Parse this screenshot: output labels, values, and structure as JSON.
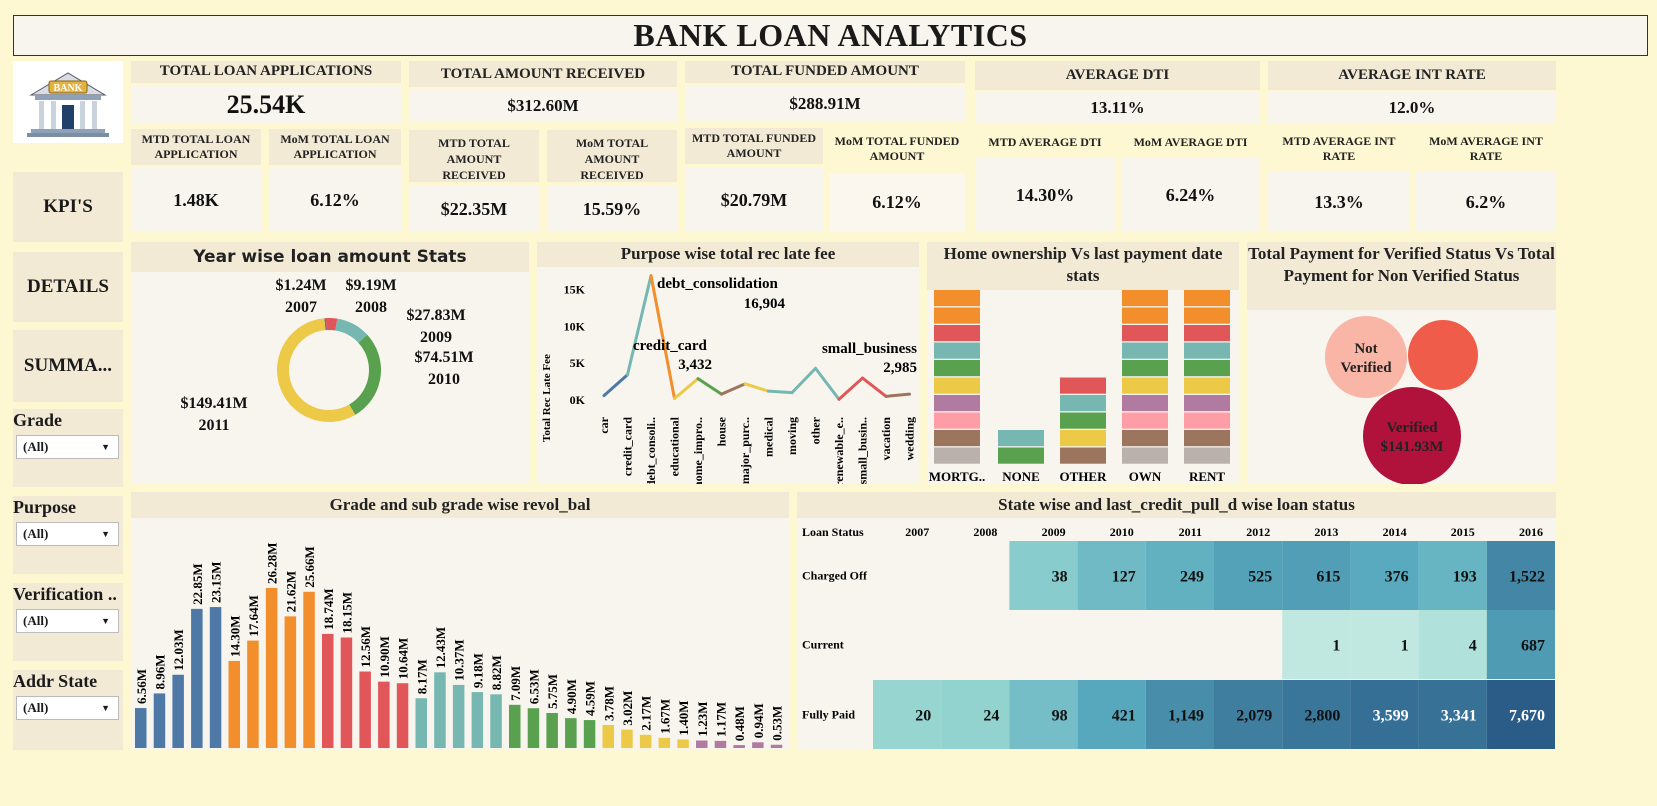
{
  "title": "BANK LOAN ANALYTICS",
  "kpis": {
    "total_loan_applications": {
      "label": "TOTAL LOAN APPLICATIONS",
      "value": "25.54K",
      "mtd_label": "MTD TOTAL LOAN APPLICATION",
      "mtd_value": "1.48K",
      "mom_label": "MoM TOTAL LOAN APPLICATION",
      "mom_value": "6.12%"
    },
    "total_amount_received": {
      "label": "TOTAL AMOUNT RECEIVED",
      "value": "$312.60M",
      "mtd_label": "MTD TOTAL AMOUNT RECEIVED",
      "mtd_value": "$22.35M",
      "mom_label": "MoM TOTAL AMOUNT RECEIVED",
      "mom_value": "15.59%"
    },
    "total_funded_amount": {
      "label": "TOTAL FUNDED AMOUNT",
      "value": "$288.91M",
      "mtd_label": "MTD TOTAL FUNDED AMOUNT",
      "mtd_value": "$20.79M",
      "mom_label": "MoM TOTAL FUNDED AMOUNT",
      "mom_value": "6.12%"
    },
    "average_dti": {
      "label": "AVERAGE DTI",
      "value": "13.11%",
      "mtd_label": "MTD AVERAGE DTI",
      "mtd_value": "14.30%",
      "mom_label": "MoM AVERAGE DTI",
      "mom_value": "6.24%"
    },
    "average_int_rate": {
      "label": "AVERAGE INT RATE",
      "value": "12.0%",
      "mtd_label": "MTD AVERAGE INT RATE",
      "mtd_value": "13.3%",
      "mom_label": "MoM AVERAGE INT RATE",
      "mom_value": "6.2%"
    }
  },
  "logo": {
    "text": "BANK",
    "icon": "bank-icon"
  },
  "nav": {
    "kpis": "KPI'S",
    "details": "DETAILS",
    "summary": "SUMMA..."
  },
  "filters": [
    {
      "label": "Grade",
      "value": "(All)"
    },
    {
      "label": "Purpose",
      "value": "(All)"
    },
    {
      "label": "Verification ..",
      "value": "(All)"
    },
    {
      "label": "Addr State",
      "value": "(All)"
    }
  ],
  "colors": {
    "blue": "#4e79a7",
    "orange": "#f28e2b",
    "red": "#e15759",
    "teal": "#76b7b2",
    "green": "#59a14f",
    "yellow": "#edc948",
    "purple": "#b07aa1",
    "pink": "#ff9da7",
    "brown": "#9c755f",
    "grey": "#bab0ac",
    "heat_dark": "#2b5b87"
  },
  "charts": {
    "year_wise": {
      "title": "Year wise loan amount Stats"
    },
    "purpose_fee": {
      "title": "Purpose wise total rec late fee"
    },
    "home_ownership": {
      "title": "Home ownership Vs last payment date stats"
    },
    "verified": {
      "title": "Total Payment for Verified Status Vs Total Payment for Non Verified Status"
    },
    "grade_revol": {
      "title": "Grade and sub grade wise revol_bal"
    },
    "state_status": {
      "title": "State wise and last_credit_pull_d wise loan status"
    }
  },
  "chart_data": [
    {
      "type": "pie",
      "title": "Year wise loan amount Stats",
      "categories": [
        "2007",
        "2008",
        "2009",
        "2010",
        "2011"
      ],
      "values": [
        1.24,
        9.19,
        27.83,
        74.51,
        149.41
      ],
      "labels": [
        "$1.24M",
        "$9.19M",
        "$27.83M",
        "$74.51M",
        "$149.41M"
      ],
      "colors": [
        "#4e79a7",
        "#e15759",
        "#76b7b2",
        "#59a14f",
        "#edc948"
      ]
    },
    {
      "type": "line",
      "title": "Purpose wise total rec late fee",
      "ylabel": "Total Rec Late Fee",
      "categories": [
        "car",
        "credit_card",
        "debt_consoli..",
        "educational",
        "home_impro..",
        "house",
        "major_purc..",
        "medical",
        "moving",
        "other",
        "renewable_e..",
        "small_busin..",
        "vacation",
        "wedding"
      ],
      "values": [
        600,
        3432,
        16904,
        200,
        2900,
        800,
        2200,
        1200,
        1000,
        4300,
        100,
        2985,
        500,
        800
      ],
      "ylim": [
        0,
        17000
      ],
      "yticks": [
        "0K",
        "5K",
        "10K",
        "15K"
      ],
      "annotations": [
        {
          "name": "debt_consolidation",
          "value": "16,904"
        },
        {
          "name": "credit_card",
          "value": "3,432"
        },
        {
          "name": "small_business",
          "value": "2,985"
        }
      ]
    },
    {
      "type": "bar",
      "title": "Home ownership Vs last payment date stats",
      "categories": [
        "MORTG..",
        "NONE",
        "OTHER",
        "OWN",
        "RENT"
      ],
      "segments_per_category": [
        10,
        2,
        5,
        10,
        10
      ],
      "segment_colors": [
        "#bab0ac",
        "#9c755f",
        "#ff9da7",
        "#b07aa1",
        "#edc948",
        "#59a14f",
        "#76b7b2",
        "#e15759",
        "#f28e2b"
      ]
    },
    {
      "type": "scatter",
      "title": "Total Payment for Verified Status Vs Total Payment for Non Verified Status",
      "series": [
        {
          "name": "Not Verified",
          "label": "",
          "color": "#f9b5a6"
        },
        {
          "name": "",
          "label": "",
          "color": "#ef5d4a"
        },
        {
          "name": "Verified",
          "label": "$141.93M",
          "color": "#b0123b"
        }
      ]
    },
    {
      "type": "bar",
      "title": "Grade and sub grade wise revol_bal",
      "labels": [
        "6.56M",
        "8.96M",
        "12.03M",
        "22.85M",
        "23.15M",
        "14.30M",
        "17.64M",
        "26.28M",
        "21.62M",
        "25.66M",
        "18.74M",
        "18.15M",
        "12.56M",
        "10.90M",
        "10.64M",
        "8.17M",
        "12.43M",
        "10.37M",
        "9.18M",
        "8.82M",
        "7.09M",
        "6.53M",
        "5.75M",
        "4.90M",
        "4.59M",
        "3.78M",
        "3.02M",
        "2.17M",
        "1.67M",
        "1.40M",
        "1.23M",
        "1.17M",
        "0.48M",
        "0.94M",
        "0.53M"
      ],
      "values": [
        6.56,
        8.96,
        12.03,
        22.85,
        23.15,
        14.3,
        17.64,
        26.28,
        21.62,
        25.66,
        18.74,
        18.15,
        12.56,
        10.9,
        10.64,
        8.17,
        12.43,
        10.37,
        9.18,
        8.82,
        7.09,
        6.53,
        5.75,
        4.9,
        4.59,
        3.78,
        3.02,
        2.17,
        1.67,
        1.4,
        1.23,
        1.17,
        0.48,
        0.94,
        0.53
      ],
      "group_colors": [
        "#4e79a7",
        "#f28e2b",
        "#e15759",
        "#76b7b2",
        "#59a14f",
        "#edc948",
        "#b07aa1"
      ]
    },
    {
      "type": "heatmap",
      "title": "State wise and last_credit_pull_d wise loan status",
      "row_header": "Loan Status",
      "columns": [
        "2007",
        "2008",
        "2009",
        "2010",
        "2011",
        "2012",
        "2013",
        "2014",
        "2015",
        "2016"
      ],
      "rows": [
        {
          "name": "Charged Off",
          "cells": [
            "",
            "",
            "38",
            "127",
            "249",
            "525",
            "615",
            "376",
            "193",
            "1,522"
          ]
        },
        {
          "name": "Current",
          "cells": [
            "",
            "",
            "",
            "",
            "",
            "",
            "1",
            "1",
            "4",
            "687"
          ]
        },
        {
          "name": "Fully Paid",
          "cells": [
            "20",
            "24",
            "98",
            "421",
            "1,149",
            "2,079",
            "2,800",
            "3,599",
            "3,341",
            "7,670"
          ]
        }
      ],
      "values": [
        [
          null,
          null,
          38,
          127,
          249,
          525,
          615,
          376,
          193,
          1522
        ],
        [
          null,
          null,
          null,
          null,
          null,
          null,
          1,
          1,
          4,
          687
        ],
        [
          20,
          24,
          98,
          421,
          1149,
          2079,
          2800,
          3599,
          3341,
          7670
        ]
      ]
    }
  ]
}
